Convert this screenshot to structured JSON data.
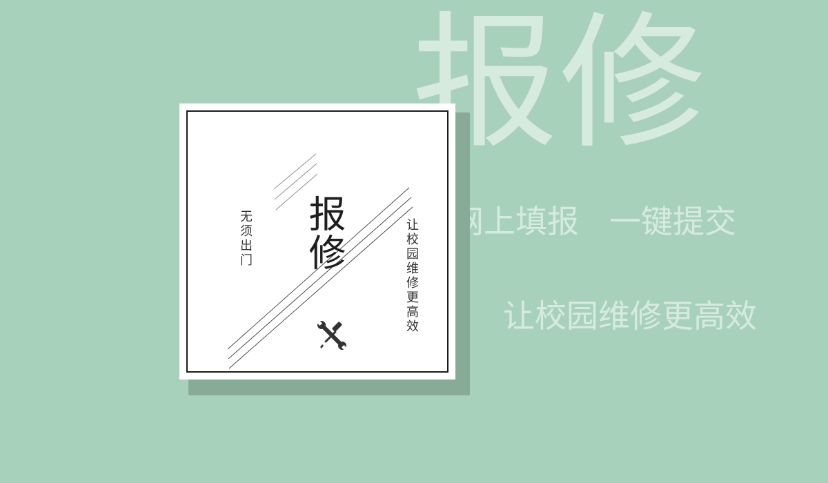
{
  "background": {
    "color": "#a8d1bb",
    "watermark": "报修"
  },
  "slogans": {
    "line1_part1": "网上填报",
    "line1_part2": "一键提交",
    "line2": "让校园维修更高效"
  },
  "card": {
    "title": "报修",
    "left_text": "无须出门",
    "right_text": "让校园维修更高效",
    "icon": "tools-icon"
  },
  "colors": {
    "background": "#a8d1bb",
    "watermark_text": "#d6ebde",
    "card_shadow": "#88ab98",
    "card": "#ffffff",
    "frame": "#1a1a1a"
  }
}
